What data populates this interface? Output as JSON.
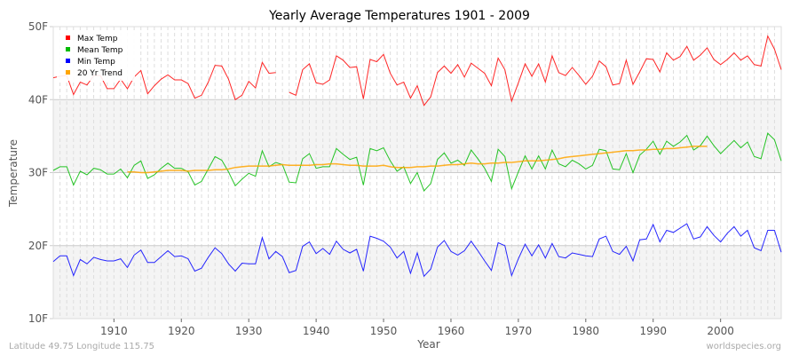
{
  "chart_data": {
    "type": "line",
    "title": "Yearly Average Temperatures 1901 - 2009",
    "xlabel": "Year",
    "ylabel": "Temperature",
    "xlim": [
      1901,
      2009
    ],
    "ylim": [
      10,
      50
    ],
    "yticks": [
      "10F",
      "20F",
      "30F",
      "40F",
      "50F"
    ],
    "ytick_values": [
      10,
      20,
      30,
      40,
      50
    ],
    "xticks": [
      1910,
      1920,
      1930,
      1940,
      1950,
      1960,
      1970,
      1980,
      1990,
      2000
    ],
    "grid": true,
    "legend_placement": "top-left",
    "x_start": 1901,
    "series": [
      {
        "name": "Max Temp",
        "color": "#ff0000",
        "values": [
          43.0,
          43.2,
          43.3,
          40.7,
          42.4,
          42.0,
          43.3,
          43.3,
          41.5,
          41.5,
          42.8,
          41.5,
          43.1,
          44.0,
          40.8,
          41.9,
          42.8,
          43.4,
          42.7,
          42.7,
          42.2,
          40.2,
          40.6,
          42.4,
          44.7,
          44.6,
          42.8,
          40.0,
          40.6,
          42.5,
          41.6,
          45.1,
          43.6,
          43.7,
          null,
          41.0,
          40.6,
          44.1,
          44.9,
          42.3,
          42.1,
          42.7,
          46.0,
          45.4,
          44.4,
          44.5,
          40.1,
          45.5,
          45.2,
          46.2,
          43.6,
          42.0,
          42.4,
          40.2,
          41.9,
          39.2,
          40.4,
          43.7,
          44.6,
          43.6,
          44.8,
          43.1,
          45.0,
          44.3,
          43.6,
          41.9,
          45.7,
          44.1,
          39.8,
          42.3,
          44.9,
          43.2,
          44.9,
          42.4,
          46.0,
          43.7,
          43.3,
          44.4,
          43.3,
          42.1,
          43.2,
          45.3,
          44.5,
          42.0,
          42.2,
          45.4,
          42.1,
          43.8,
          45.6,
          45.5,
          43.8,
          46.4,
          45.4,
          45.9,
          47.3,
          45.4,
          46.1,
          47.1,
          45.5,
          44.8,
          45.5,
          46.4,
          45.4,
          46.0,
          44.8,
          44.6,
          48.7,
          46.9,
          44.1
        ]
      },
      {
        "name": "Mean Temp",
        "color": "#00bb00",
        "values": [
          30.3,
          30.8,
          30.8,
          28.3,
          30.2,
          29.7,
          30.6,
          30.4,
          29.8,
          29.8,
          30.5,
          29.3,
          31.0,
          31.6,
          29.2,
          29.7,
          30.6,
          31.3,
          30.6,
          30.6,
          30.1,
          28.3,
          28.8,
          30.5,
          32.2,
          31.7,
          30.1,
          28.2,
          29.1,
          29.9,
          29.5,
          33.0,
          30.8,
          31.4,
          31.1,
          28.7,
          28.6,
          31.9,
          32.6,
          30.6,
          30.8,
          30.8,
          33.3,
          32.5,
          31.8,
          32.1,
          28.3,
          33.3,
          33.0,
          33.4,
          31.6,
          30.2,
          30.8,
          28.5,
          30.0,
          27.5,
          28.5,
          31.8,
          32.7,
          31.3,
          31.7,
          31.0,
          33.1,
          31.9,
          30.6,
          28.8,
          33.2,
          32.2,
          27.8,
          30.1,
          32.3,
          30.5,
          32.3,
          30.5,
          33.1,
          31.2,
          30.8,
          31.7,
          31.2,
          30.5,
          31.0,
          33.2,
          33.0,
          30.5,
          30.4,
          32.6,
          30.0,
          32.4,
          33.2,
          34.3,
          32.5,
          34.3,
          33.6,
          34.2,
          35.1,
          33.1,
          33.7,
          35.0,
          33.7,
          32.6,
          33.5,
          34.4,
          33.4,
          34.2,
          32.2,
          31.9,
          35.4,
          34.5,
          31.6
        ]
      },
      {
        "name": "Min Temp",
        "color": "#0000ff",
        "values": [
          17.8,
          18.6,
          18.6,
          15.9,
          18.1,
          17.5,
          18.4,
          18.1,
          17.9,
          17.9,
          18.2,
          17.0,
          18.7,
          19.4,
          17.7,
          17.7,
          18.5,
          19.3,
          18.5,
          18.6,
          18.2,
          16.5,
          16.9,
          18.4,
          19.7,
          18.9,
          17.5,
          16.5,
          17.6,
          17.5,
          17.5,
          21.1,
          18.2,
          19.2,
          18.5,
          16.3,
          16.6,
          19.9,
          20.5,
          18.9,
          19.6,
          18.8,
          20.6,
          19.5,
          19.0,
          19.5,
          16.5,
          21.3,
          21.0,
          20.6,
          19.8,
          18.3,
          19.2,
          16.2,
          19.0,
          15.8,
          16.8,
          19.8,
          20.7,
          19.2,
          18.7,
          19.3,
          20.6,
          19.3,
          17.9,
          16.6,
          20.4,
          20.0,
          15.9,
          18.2,
          20.2,
          18.6,
          20.1,
          18.3,
          20.3,
          18.5,
          18.3,
          19.0,
          18.8,
          18.6,
          18.5,
          20.9,
          21.3,
          19.2,
          18.8,
          19.9,
          17.9,
          20.8,
          20.9,
          22.9,
          20.5,
          22.1,
          21.8,
          22.4,
          23.0,
          20.9,
          21.2,
          22.6,
          21.4,
          20.5,
          21.7,
          22.6,
          21.3,
          22.1,
          19.7,
          19.3,
          22.1,
          22.1,
          19.1
        ]
      },
      {
        "name": "20 Yr Trend",
        "color": "#ffa500",
        "x_start": 1912,
        "values": [
          30.1,
          30.1,
          30.0,
          30.0,
          30.1,
          30.2,
          30.3,
          30.3,
          30.3,
          30.2,
          30.3,
          30.3,
          30.3,
          30.4,
          30.4,
          30.5,
          30.7,
          30.8,
          30.9,
          30.9,
          30.9,
          30.9,
          31.0,
          31.1,
          31.0,
          31.0,
          31.0,
          31.0,
          31.1,
          31.1,
          31.2,
          31.2,
          31.1,
          31.0,
          31.0,
          30.9,
          30.9,
          30.9,
          31.0,
          30.8,
          30.7,
          30.7,
          30.7,
          30.8,
          30.8,
          30.9,
          30.9,
          31.0,
          31.1,
          31.1,
          31.2,
          31.3,
          31.2,
          31.2,
          31.3,
          31.3,
          31.4,
          31.4,
          31.5,
          31.6,
          31.6,
          31.6,
          31.7,
          31.8,
          31.9,
          32.1,
          32.2,
          32.3,
          32.4,
          32.5,
          32.6,
          32.7,
          32.8,
          32.9,
          33.0,
          33.0,
          33.1,
          33.1,
          33.2,
          33.2,
          33.3,
          33.3,
          33.4,
          33.5,
          33.6,
          33.6,
          33.6
        ]
      }
    ]
  },
  "footer": {
    "location": "Latitude 49.75 Longitude 115.75",
    "source": "worldspecies.org"
  }
}
